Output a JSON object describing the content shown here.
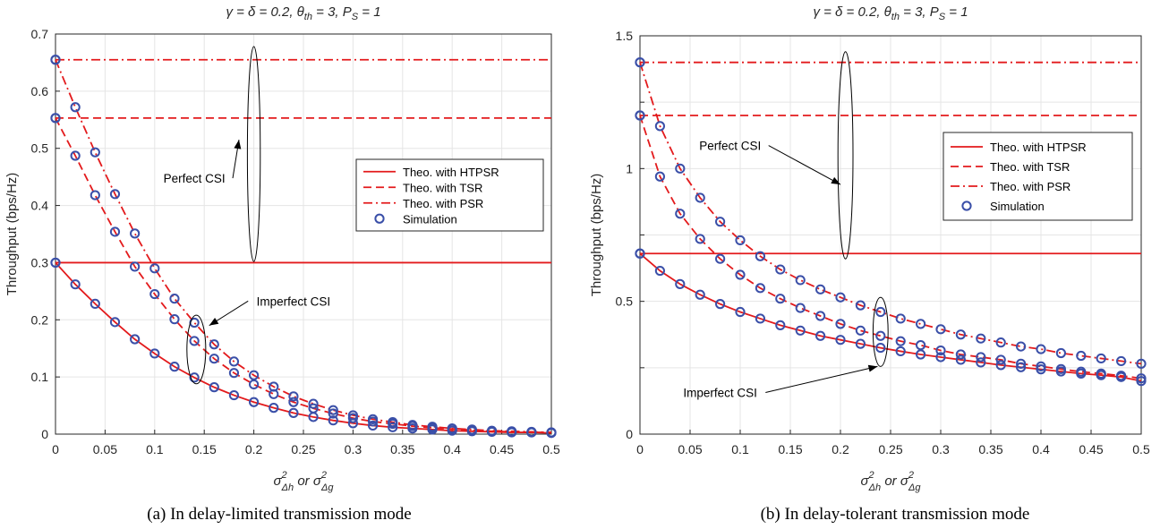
{
  "chart_data": [
    {
      "type": "line",
      "title": "γ = δ = 0.2, θ_th = 3, P_S = 1",
      "title_parts": {
        "p1": "γ = δ = 0.2, θ",
        "sub1": "th",
        "p2": " = 3, P",
        "sub2": "S",
        "p3": " = 1"
      },
      "xlabel_parts": {
        "a": "σ",
        "a_sup": "2",
        "a_sub": "Δh",
        "mid": " or σ",
        "b_sup": "2",
        "b_sub": "Δg"
      },
      "ylabel": "Throughput (bps/Hz)",
      "caption": "(a)  In delay-limited transmission mode",
      "xlim": [
        0,
        0.5
      ],
      "ylim": [
        0,
        0.7
      ],
      "xticks": [
        "0",
        "0.05",
        "0.1",
        "0.15",
        "0.2",
        "0.25",
        "0.3",
        "0.35",
        "0.4",
        "0.45",
        "0.5"
      ],
      "yticks": [
        "0",
        "0.1",
        "0.2",
        "0.3",
        "0.4",
        "0.5",
        "0.6",
        "0.7"
      ],
      "grid": true,
      "legend_position": "center-right",
      "legend": [
        "Theo. with HTPSR",
        "Theo. with TSR",
        "Theo. with PSR",
        "Simulation"
      ],
      "series": [
        {
          "name": "Theo. with HTPSR",
          "condition": "Perfect CSI",
          "style": "solid",
          "x": [
            0,
            0.5
          ],
          "y": [
            0.3,
            0.3
          ]
        },
        {
          "name": "Theo. with TSR",
          "condition": "Perfect CSI",
          "style": "dashed",
          "x": [
            0,
            0.5
          ],
          "y": [
            0.553,
            0.553
          ]
        },
        {
          "name": "Theo. with PSR",
          "condition": "Perfect CSI",
          "style": "dashdot",
          "x": [
            0,
            0.5
          ],
          "y": [
            0.655,
            0.655
          ]
        },
        {
          "name": "Theo. with HTPSR",
          "condition": "Imperfect CSI",
          "style": "solid",
          "x": [
            0,
            0.02,
            0.04,
            0.06,
            0.08,
            0.1,
            0.12,
            0.14,
            0.16,
            0.18,
            0.2,
            0.22,
            0.24,
            0.26,
            0.28,
            0.3,
            0.32,
            0.34,
            0.36,
            0.38,
            0.4,
            0.42,
            0.44,
            0.46,
            0.48,
            0.5
          ],
          "y": [
            0.3,
            0.262,
            0.228,
            0.196,
            0.166,
            0.141,
            0.118,
            0.099,
            0.082,
            0.068,
            0.056,
            0.046,
            0.037,
            0.03,
            0.024,
            0.019,
            0.015,
            0.012,
            0.01,
            0.008,
            0.006,
            0.005,
            0.004,
            0.003,
            0.003,
            0.002
          ]
        },
        {
          "name": "Theo. with TSR",
          "condition": "Imperfect CSI",
          "style": "dashed",
          "x": [
            0,
            0.02,
            0.04,
            0.06,
            0.08,
            0.1,
            0.12,
            0.14,
            0.16,
            0.18,
            0.2,
            0.22,
            0.24,
            0.26,
            0.28,
            0.3,
            0.32,
            0.34,
            0.36,
            0.38,
            0.4,
            0.42,
            0.44,
            0.46,
            0.48,
            0.5
          ],
          "y": [
            0.553,
            0.487,
            0.418,
            0.354,
            0.293,
            0.245,
            0.201,
            0.163,
            0.132,
            0.107,
            0.087,
            0.07,
            0.056,
            0.045,
            0.036,
            0.028,
            0.022,
            0.018,
            0.014,
            0.011,
            0.009,
            0.007,
            0.005,
            0.004,
            0.003,
            0.003
          ]
        },
        {
          "name": "Theo. with PSR",
          "condition": "Imperfect CSI",
          "style": "dashdot",
          "x": [
            0,
            0.02,
            0.04,
            0.06,
            0.08,
            0.1,
            0.12,
            0.14,
            0.16,
            0.18,
            0.2,
            0.22,
            0.24,
            0.26,
            0.28,
            0.3,
            0.32,
            0.34,
            0.36,
            0.38,
            0.4,
            0.42,
            0.44,
            0.46,
            0.48,
            0.5
          ],
          "y": [
            0.655,
            0.572,
            0.493,
            0.42,
            0.351,
            0.29,
            0.237,
            0.195,
            0.157,
            0.127,
            0.103,
            0.083,
            0.066,
            0.053,
            0.042,
            0.033,
            0.026,
            0.021,
            0.016,
            0.013,
            0.01,
            0.008,
            0.006,
            0.005,
            0.004,
            0.003
          ]
        }
      ],
      "simulation_x": [
        0,
        0.02,
        0.04,
        0.06,
        0.08,
        0.1,
        0.12,
        0.14,
        0.16,
        0.18,
        0.2,
        0.22,
        0.24,
        0.26,
        0.28,
        0.3,
        0.32,
        0.34,
        0.36,
        0.38,
        0.4,
        0.42,
        0.44,
        0.46,
        0.48,
        0.5
      ],
      "annotations": {
        "perfect": {
          "text": "Perfect CSI",
          "x": 0.14,
          "y": 0.44,
          "target_x": 0.185,
          "target_y": 0.515,
          "ellipse_cx": 0.2,
          "ellipse_cy": 0.49,
          "ellipse_rx": 0.0065,
          "ellipse_ry": 0.188
        },
        "imperfect": {
          "text": "Imperfect CSI",
          "x": 0.24,
          "y": 0.225,
          "target_x": 0.155,
          "target_y": 0.19,
          "ellipse_cx": 0.142,
          "ellipse_cy": 0.148,
          "ellipse_rx": 0.0095,
          "ellipse_ry": 0.06
        }
      }
    },
    {
      "type": "line",
      "title": "γ = δ = 0.2, θ_th = 3, P_S = 1",
      "title_parts": {
        "p1": "γ = δ = 0.2, θ",
        "sub1": "th",
        "p2": " = 3, P",
        "sub2": "S",
        "p3": " = 1"
      },
      "xlabel_parts": {
        "a": "σ",
        "a_sup": "2",
        "a_sub": "Δh",
        "mid": " or σ",
        "b_sup": "2",
        "b_sub": "Δg"
      },
      "ylabel": "Throughput (bps/Hz)",
      "caption": "(b)  In delay-tolerant transmission mode",
      "xlim": [
        0,
        0.5
      ],
      "ylim": [
        0,
        1.5
      ],
      "xticks": [
        "0",
        "0.05",
        "0.1",
        "0.15",
        "0.2",
        "0.25",
        "0.3",
        "0.35",
        "0.4",
        "0.45",
        "0.5"
      ],
      "yticks": [
        "0",
        "",
        "0.5",
        "",
        "1",
        "",
        "1.5"
      ],
      "grid": true,
      "legend_position": "top-right",
      "legend": [
        "Theo. with HTPSR",
        "Theo. with TSR",
        "Theo. with PSR",
        "Simulation"
      ],
      "series": [
        {
          "name": "Theo. with HTPSR",
          "condition": "Perfect CSI",
          "style": "solid",
          "x": [
            0,
            0.5
          ],
          "y": [
            0.68,
            0.68
          ]
        },
        {
          "name": "Theo. with TSR",
          "condition": "Perfect CSI",
          "style": "dashed",
          "x": [
            0,
            0.5
          ],
          "y": [
            1.2,
            1.2
          ]
        },
        {
          "name": "Theo. with PSR",
          "condition": "Perfect CSI",
          "style": "dashdot",
          "x": [
            0,
            0.5
          ],
          "y": [
            1.4,
            1.4
          ]
        },
        {
          "name": "Theo. with HTPSR",
          "condition": "Imperfect CSI",
          "style": "solid",
          "x": [
            0,
            0.02,
            0.04,
            0.06,
            0.08,
            0.1,
            0.12,
            0.14,
            0.16,
            0.18,
            0.2,
            0.22,
            0.24,
            0.26,
            0.28,
            0.3,
            0.32,
            0.34,
            0.36,
            0.38,
            0.4,
            0.42,
            0.44,
            0.46,
            0.48,
            0.5
          ],
          "y": [
            0.68,
            0.615,
            0.565,
            0.525,
            0.49,
            0.46,
            0.435,
            0.41,
            0.39,
            0.37,
            0.355,
            0.34,
            0.325,
            0.312,
            0.3,
            0.29,
            0.28,
            0.27,
            0.26,
            0.252,
            0.244,
            0.236,
            0.228,
            0.222,
            0.215,
            0.2
          ]
        },
        {
          "name": "Theo. with TSR",
          "condition": "Imperfect CSI",
          "style": "dashed",
          "x": [
            0,
            0.02,
            0.04,
            0.06,
            0.08,
            0.1,
            0.12,
            0.14,
            0.16,
            0.18,
            0.2,
            0.22,
            0.24,
            0.26,
            0.28,
            0.3,
            0.32,
            0.34,
            0.36,
            0.38,
            0.4,
            0.42,
            0.44,
            0.46,
            0.48,
            0.5
          ],
          "y": [
            1.2,
            0.97,
            0.83,
            0.735,
            0.66,
            0.6,
            0.55,
            0.51,
            0.475,
            0.445,
            0.415,
            0.39,
            0.37,
            0.35,
            0.335,
            0.315,
            0.3,
            0.29,
            0.28,
            0.265,
            0.255,
            0.245,
            0.235,
            0.228,
            0.22,
            0.21
          ]
        },
        {
          "name": "Theo. with PSR",
          "condition": "Imperfect CSI",
          "style": "dashdot",
          "x": [
            0,
            0.02,
            0.04,
            0.06,
            0.08,
            0.1,
            0.12,
            0.14,
            0.16,
            0.18,
            0.2,
            0.22,
            0.24,
            0.26,
            0.28,
            0.3,
            0.32,
            0.34,
            0.36,
            0.38,
            0.4,
            0.42,
            0.44,
            0.46,
            0.48,
            0.5
          ],
          "y": [
            1.4,
            1.16,
            1.0,
            0.89,
            0.8,
            0.73,
            0.67,
            0.62,
            0.58,
            0.545,
            0.515,
            0.485,
            0.46,
            0.435,
            0.415,
            0.395,
            0.375,
            0.36,
            0.345,
            0.33,
            0.32,
            0.305,
            0.295,
            0.285,
            0.275,
            0.265
          ]
        }
      ],
      "simulation_x": [
        0,
        0.02,
        0.04,
        0.06,
        0.08,
        0.1,
        0.12,
        0.14,
        0.16,
        0.18,
        0.2,
        0.22,
        0.24,
        0.26,
        0.28,
        0.3,
        0.32,
        0.34,
        0.36,
        0.38,
        0.4,
        0.42,
        0.44,
        0.46,
        0.48,
        0.5
      ],
      "annotations": {
        "perfect": {
          "text": "Perfect CSI",
          "x": 0.09,
          "y": 1.07,
          "target_x": 0.2,
          "target_y": 0.94,
          "ellipse_cx": 0.205,
          "ellipse_cy": 1.05,
          "ellipse_rx": 0.0075,
          "ellipse_ry": 0.39
        },
        "imperfect": {
          "text": "Imperfect CSI",
          "x": 0.08,
          "y": 0.14,
          "target_x": 0.237,
          "target_y": 0.255,
          "ellipse_cx": 0.24,
          "ellipse_cy": 0.385,
          "ellipse_rx": 0.0075,
          "ellipse_ry": 0.13
        }
      }
    }
  ],
  "colors": {
    "line": "#e31a1c",
    "marker": "#3a4fa8",
    "grid": "#e5e5e5",
    "axis": "#262626"
  }
}
